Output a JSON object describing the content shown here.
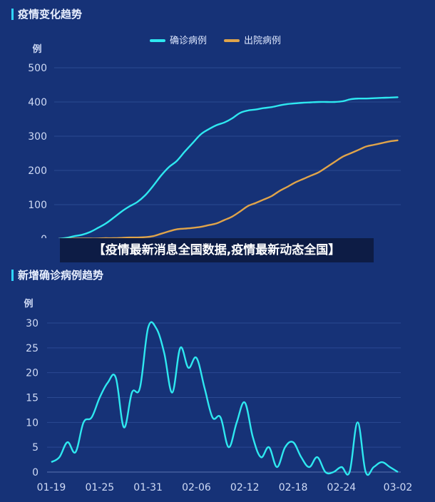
{
  "banner": {
    "text": "【疫情最新消息全国数据,疫情最新动态全国】"
  },
  "colors": {
    "background": "#163277",
    "confirmed": "#2ee8f0",
    "recovered": "#e0a44a",
    "grid": "#2b4a92"
  },
  "chart_data": [
    {
      "type": "line",
      "title": "疫情变化趋势",
      "ylabel": "例",
      "ylim": [
        0,
        500
      ],
      "yticks": [
        0,
        100,
        200,
        300,
        400,
        500
      ],
      "xtick_labels": [
        "01-19",
        "03-02"
      ],
      "x": [
        "01-19",
        "01-20",
        "01-21",
        "01-22",
        "01-23",
        "01-24",
        "01-25",
        "01-26",
        "01-27",
        "01-28",
        "01-29",
        "01-30",
        "01-31",
        "02-01",
        "02-02",
        "02-03",
        "02-04",
        "02-05",
        "02-06",
        "02-07",
        "02-08",
        "02-09",
        "02-10",
        "02-11",
        "02-12",
        "02-13",
        "02-14",
        "02-15",
        "02-16",
        "02-17",
        "02-18",
        "02-19",
        "02-20",
        "02-21",
        "02-22",
        "02-23",
        "02-24",
        "02-25",
        "02-26",
        "02-27",
        "02-28",
        "02-29",
        "03-01",
        "03-02"
      ],
      "legend": {
        "position": "top-center"
      },
      "grid": true,
      "series": [
        {
          "name": "确诊病例",
          "color": "#2ee8f0",
          "values": [
            0,
            3,
            8,
            12,
            20,
            32,
            45,
            62,
            80,
            95,
            108,
            128,
            155,
            185,
            210,
            228,
            255,
            280,
            305,
            320,
            332,
            340,
            352,
            368,
            375,
            378,
            382,
            385,
            390,
            394,
            396,
            398,
            399,
            400,
            400,
            400,
            402,
            408,
            410,
            410,
            411,
            412,
            413,
            414
          ]
        },
        {
          "name": "出院病例",
          "color": "#e0a44a",
          "values": [
            0,
            0,
            1,
            1,
            1,
            1,
            2,
            2,
            3,
            4,
            4,
            5,
            8,
            15,
            22,
            28,
            30,
            32,
            35,
            40,
            45,
            55,
            65,
            80,
            96,
            105,
            115,
            125,
            140,
            152,
            165,
            175,
            185,
            195,
            210,
            225,
            240,
            250,
            260,
            270,
            275,
            280,
            285,
            288
          ]
        }
      ]
    },
    {
      "type": "line",
      "title": "新增确诊病例趋势",
      "ylabel": "例",
      "ylim": [
        0,
        30
      ],
      "yticks": [
        0,
        5,
        10,
        15,
        20,
        25,
        30
      ],
      "xtick_labels": [
        "01-19",
        "01-25",
        "01-31",
        "02-06",
        "02-12",
        "02-18",
        "02-24",
        "03-02"
      ],
      "x": [
        "01-19",
        "01-20",
        "01-21",
        "01-22",
        "01-23",
        "01-24",
        "01-25",
        "01-26",
        "01-27",
        "01-28",
        "01-29",
        "01-30",
        "01-31",
        "02-01",
        "02-02",
        "02-03",
        "02-04",
        "02-05",
        "02-06",
        "02-07",
        "02-08",
        "02-09",
        "02-10",
        "02-11",
        "02-12",
        "02-13",
        "02-14",
        "02-15",
        "02-16",
        "02-17",
        "02-18",
        "02-19",
        "02-20",
        "02-21",
        "02-22",
        "02-23",
        "02-24",
        "02-25",
        "02-26",
        "02-27",
        "02-28",
        "02-29",
        "03-01",
        "03-02"
      ],
      "grid": true,
      "series": [
        {
          "name": "",
          "color": "#2ee8f0",
          "values": [
            2,
            3,
            6,
            4,
            10,
            11,
            15,
            18,
            19,
            9,
            16,
            17,
            29,
            29,
            24,
            16,
            25,
            21,
            23,
            17,
            11,
            11,
            5,
            10,
            14,
            7,
            3,
            5,
            1,
            5,
            6,
            3,
            1,
            3,
            0,
            0,
            1,
            0,
            10,
            0,
            1,
            2,
            1,
            0
          ]
        }
      ]
    }
  ]
}
